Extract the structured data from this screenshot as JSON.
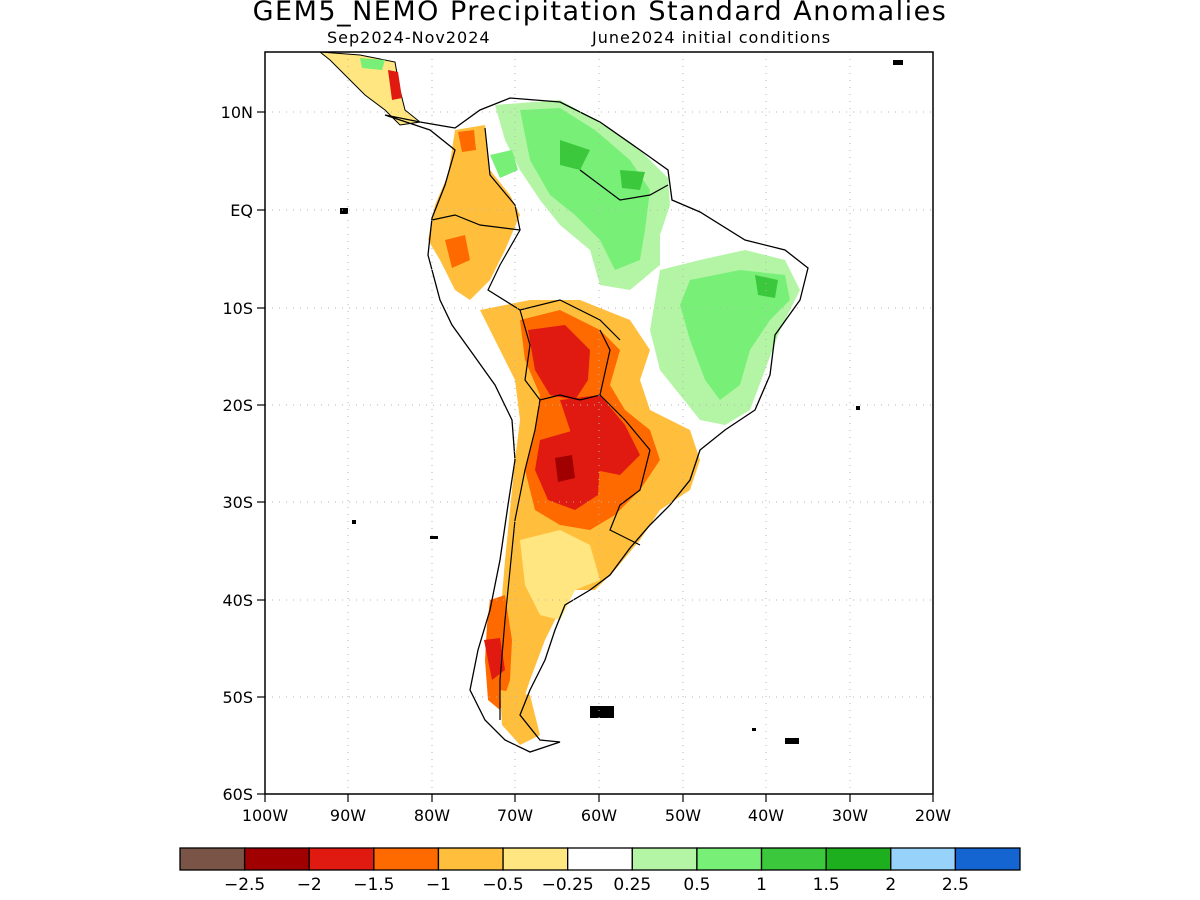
{
  "title": "GEM5_NEMO Precipitation Standard Anomalies",
  "subtitle_left": "Sep2024-Nov2024",
  "subtitle_right": "June2024 initial conditions",
  "map": {
    "lat_labels": [
      "10N",
      "EQ",
      "10S",
      "20S",
      "30S",
      "40S",
      "50S",
      "60S"
    ],
    "lon_labels": [
      "100W",
      "90W",
      "80W",
      "70W",
      "60W",
      "50W",
      "40W",
      "30W",
      "20W"
    ]
  },
  "colorbar": {
    "colors": [
      "#7a5446",
      "#a00000",
      "#e01a10",
      "#ff6a00",
      "#ffbf3c",
      "#ffe680",
      "#ffffff",
      "#b4f5a5",
      "#78f078",
      "#3cc83c",
      "#1eaf1e",
      "#96d2fa",
      "#1464d2"
    ],
    "labels": [
      "-2.5",
      "-2",
      "-1.5",
      "-1",
      "-0.5",
      "-0.25",
      "0.25",
      "0.5",
      "1",
      "1.5",
      "2",
      "2.5"
    ]
  }
}
